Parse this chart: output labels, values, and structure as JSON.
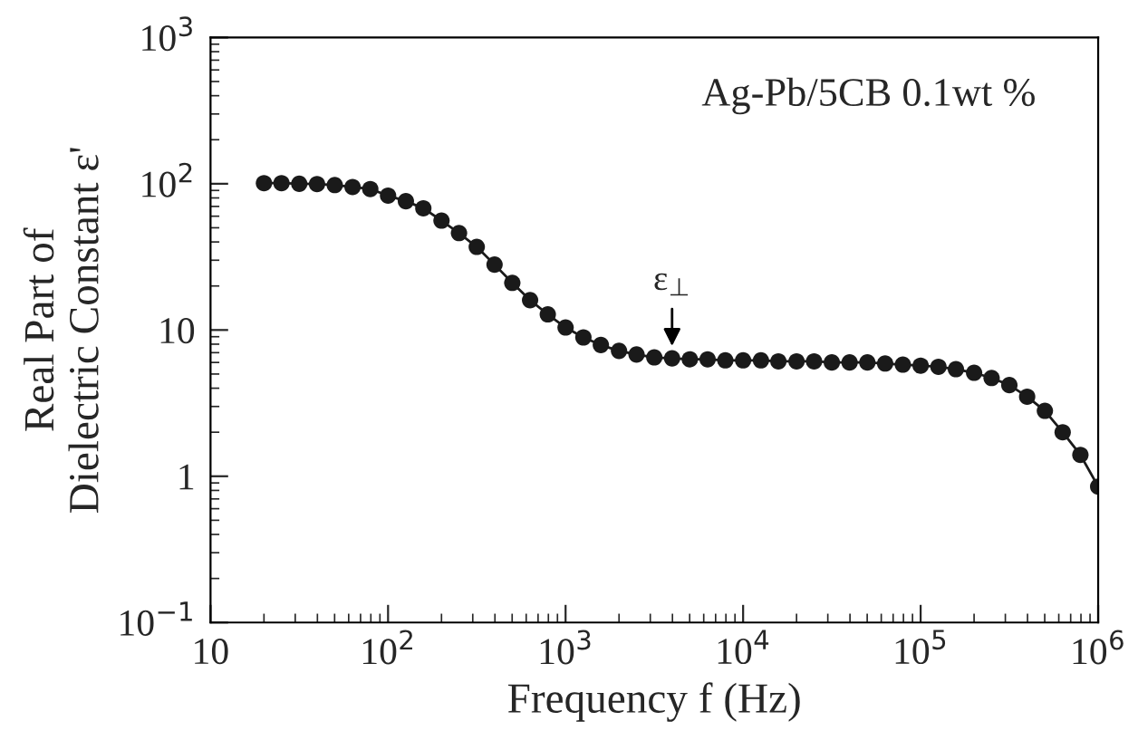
{
  "chart_data": {
    "type": "line",
    "xlabel": "Frequency f (Hz)",
    "ylabel": "Real Part of\nDielectric Constant ε'",
    "annotations": [
      "Ag-Pb/5CB 0.1wt %",
      {
        "text": "ε$_{⊥}$",
        "x": 3980,
        "y": 6.4
      }
    ],
    "log": "xy",
    "xlim": [
      10,
      1000000
    ],
    "ylim": [
      0.1,
      1000
    ],
    "xticks": [
      10,
      {
        "value": 100,
        "label": "10$^{2}$"
      },
      {
        "value": 1000,
        "label": "10$^{3}$"
      },
      {
        "value": 10000,
        "label": "10$^{4}$"
      },
      {
        "value": 100000,
        "label": "10$^{5}$"
      },
      {
        "value": 1000000,
        "label": "10$^{6}$"
      }
    ],
    "yticks": [
      {
        "value": 0.1,
        "label": "10$^{−1}$"
      },
      1,
      10,
      {
        "value": 100,
        "label": "10$^{2}$"
      },
      {
        "value": 1000,
        "label": "10$^{3}$"
      }
    ],
    "grid": false,
    "legend": false,
    "marker": "circle",
    "line_style": "solid",
    "series": [
      {
        "color": "#1a1a1a",
        "x": [
          20,
          25.1,
          31.6,
          39.8,
          50.1,
          63.1,
          79.4,
          100,
          126,
          158,
          200,
          251,
          316,
          398,
          501,
          631,
          794,
          1000,
          1260,
          1580,
          2000,
          2510,
          3160,
          3980,
          5010,
          6310,
          7940,
          10000,
          12600,
          15800,
          20000,
          25100,
          31600,
          39800,
          50100,
          63100,
          79400,
          100000,
          126000,
          158000,
          200000,
          251000,
          316000,
          398000,
          501000,
          631000,
          794000,
          1000000
        ],
        "values": [
          101,
          101,
          100,
          99.5,
          98,
          95,
          92,
          83,
          76,
          68,
          56,
          46,
          37,
          28,
          21,
          16,
          12.8,
          10.4,
          8.9,
          7.9,
          7.2,
          6.8,
          6.5,
          6.4,
          6.3,
          6.3,
          6.2,
          6.2,
          6.2,
          6.1,
          6.1,
          6.1,
          6.0,
          6.0,
          6.0,
          5.9,
          5.8,
          5.7,
          5.6,
          5.4,
          5.1,
          4.7,
          4.2,
          3.5,
          2.8,
          2.0,
          1.4,
          0.85
        ]
      }
    ]
  }
}
